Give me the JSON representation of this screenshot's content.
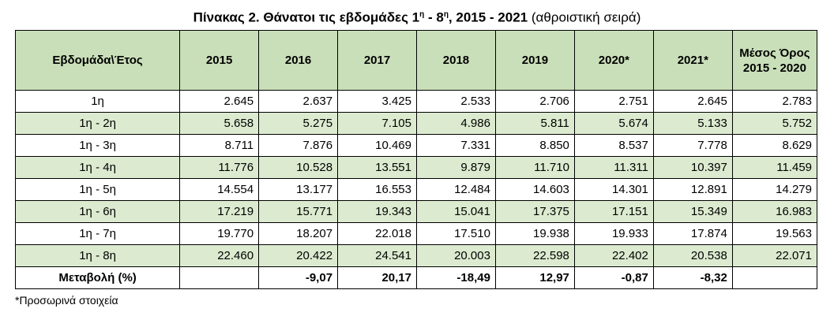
{
  "title": {
    "bold_part": "Πίνακας 2. Θάνατοι τις εβδομάδες 1",
    "sup1": "η",
    "mid": " - 8",
    "sup2": "η",
    "bold_end": ", 2015 - 2021",
    "normal_part": " (αθροιστική σειρά)"
  },
  "table": {
    "headers": [
      "Εβδομάδα\\Έτος",
      "2015",
      "2016",
      "2017",
      "2018",
      "2019",
      "2020*",
      "2021*",
      "Μέσος Όρος 2015 - 2020"
    ],
    "rows": [
      {
        "label": "1η",
        "values": [
          "2.645",
          "2.637",
          "3.425",
          "2.533",
          "2.706",
          "2.751",
          "2.645",
          "2.783"
        ]
      },
      {
        "label": "1η - 2η",
        "values": [
          "5.658",
          "5.275",
          "7.105",
          "4.986",
          "5.811",
          "5.674",
          "5.133",
          "5.752"
        ]
      },
      {
        "label": "1η - 3η",
        "values": [
          "8.711",
          "7.876",
          "10.469",
          "7.331",
          "8.850",
          "8.537",
          "7.778",
          "8.629"
        ]
      },
      {
        "label": "1η - 4η",
        "values": [
          "11.776",
          "10.528",
          "13.551",
          "9.879",
          "11.710",
          "11.311",
          "10.397",
          "11.459"
        ]
      },
      {
        "label": "1η - 5η",
        "values": [
          "14.554",
          "13.177",
          "16.553",
          "12.484",
          "14.603",
          "14.301",
          "12.891",
          "14.279"
        ]
      },
      {
        "label": "1η - 6η",
        "values": [
          "17.219",
          "15.771",
          "19.343",
          "15.041",
          "17.375",
          "17.151",
          "15.349",
          "16.983"
        ]
      },
      {
        "label": "1η - 7η",
        "values": [
          "19.770",
          "18.207",
          "22.018",
          "17.510",
          "19.938",
          "19.933",
          "17.874",
          "19.563"
        ]
      },
      {
        "label": "1η - 8η",
        "values": [
          "22.460",
          "20.422",
          "24.541",
          "20.003",
          "22.598",
          "22.402",
          "20.538",
          "22.071"
        ]
      }
    ],
    "change_row": {
      "label": "Μεταβολή (%)",
      "values": [
        "",
        "-9,07",
        "20,17",
        "-18,49",
        "12,97",
        "-0,87",
        "-8,32",
        ""
      ]
    },
    "colors": {
      "header_bg": "#c9dfb9",
      "stripe_bg": "#dcebd0"
    }
  },
  "footnote": "*Προσωρινά στοιχεία"
}
